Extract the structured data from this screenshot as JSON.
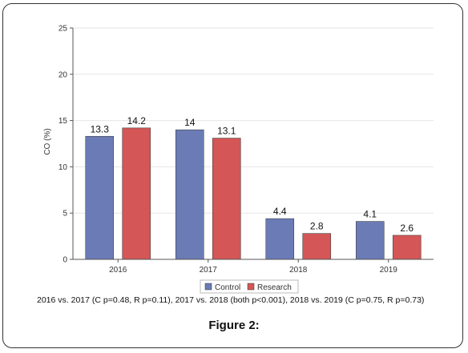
{
  "chart_data": {
    "type": "bar",
    "categories": [
      "2016",
      "2017",
      "2018",
      "2019"
    ],
    "series": [
      {
        "name": "Control",
        "values": [
          13.3,
          14,
          4.4,
          4.1
        ],
        "color": "#6a7bb6"
      },
      {
        "name": "Research",
        "values": [
          14.2,
          13.1,
          2.8,
          2.6
        ],
        "color": "#d45656"
      }
    ],
    "value_labels": [
      [
        "13.3",
        "14",
        "4.4",
        "4.1"
      ],
      [
        "14.2",
        "13.1",
        "2.8",
        "2.6"
      ]
    ],
    "ylabel": "CO (%)",
    "xlabel": "",
    "ylim": [
      0,
      25
    ],
    "yticks": [
      "0",
      "5",
      "10",
      "15",
      "20",
      "25"
    ],
    "grid": true,
    "legend": "bottom-center"
  },
  "note": "2016 vs. 2017 (C p=0.48, R p=0.11), 2017 vs. 2018 (both p<0.001), 2018 vs. 2019 (C p=0.75, R p=0.73)",
  "caption": "Figure 2:"
}
